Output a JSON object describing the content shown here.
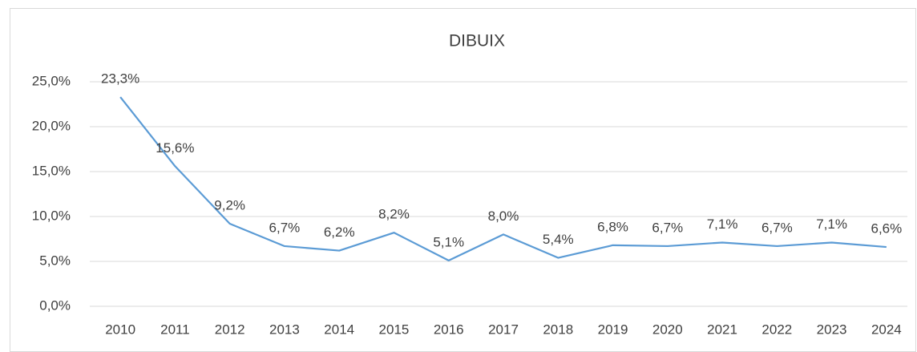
{
  "chart_data": {
    "type": "line",
    "title": "DIBUIX",
    "categories": [
      "2010",
      "2011",
      "2012",
      "2013",
      "2014",
      "2015",
      "2016",
      "2017",
      "2018",
      "2019",
      "2020",
      "2021",
      "2022",
      "2023",
      "2024"
    ],
    "series": [
      {
        "color": "#5b9bd5",
        "values": [
          23.3,
          15.6,
          9.2,
          6.7,
          6.2,
          8.2,
          5.1,
          8.0,
          5.4,
          6.8,
          6.7,
          7.1,
          6.7,
          7.1,
          6.6
        ],
        "value_labels": [
          "23,3%",
          "15,6%",
          "9,2%",
          "6,7%",
          "6,2%",
          "8,2%",
          "5,1%",
          "8,0%",
          "5,4%",
          "6,8%",
          "6,7%",
          "7,1%",
          "6,7%",
          "7,1%",
          "6,6%"
        ]
      }
    ],
    "ylim": [
      0,
      25
    ],
    "yticks": [
      {
        "value": 0,
        "label": "0,0%"
      },
      {
        "value": 5,
        "label": "5,0%"
      },
      {
        "value": 10,
        "label": "10,0%"
      },
      {
        "value": 15,
        "label": "15,0%"
      },
      {
        "value": 20,
        "label": "20,0%"
      },
      {
        "value": 25,
        "label": "25,0%"
      }
    ],
    "grid": true
  }
}
